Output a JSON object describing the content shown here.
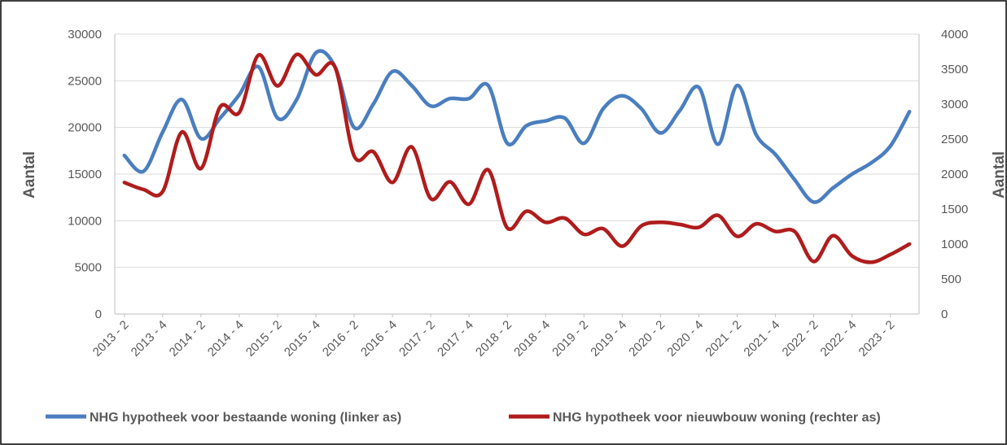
{
  "chart_data": {
    "type": "line",
    "y_left_label": "Aantal",
    "y_right_label": "Aantal",
    "y_left_range": [
      0,
      30000
    ],
    "y_left_ticks": [
      "0",
      "5000",
      "10000",
      "15000",
      "20000",
      "25000",
      "30000"
    ],
    "y_right_range": [
      0,
      4000
    ],
    "y_right_ticks": [
      "0",
      "500",
      "1000",
      "1500",
      "2000",
      "2500",
      "3000",
      "3500",
      "4000"
    ],
    "x_tick_labels": [
      "2013 - 2",
      "2013 - 4",
      "2014 - 2",
      "2014 - 4",
      "2015 - 2",
      "2015 - 4",
      "2016 - 2",
      "2016 - 4",
      "2017 - 2",
      "2017 - 4",
      "2018 - 2",
      "2018 - 4",
      "2019 - 2",
      "2019 - 4",
      "2020 - 2",
      "2020 - 4",
      "2021 - 2",
      "2021 - 4",
      "2022 - 2",
      "2022 - 4",
      "2023 - 2"
    ],
    "grid": "horizontal",
    "legend_position": "bottom",
    "series": [
      {
        "name": "NHG hypotheek voor bestaande woning (linker as)",
        "axis": "left",
        "color": "#4a7ebf",
        "values": [
          17000,
          15300,
          19500,
          23000,
          18800,
          21000,
          23500,
          26500,
          21000,
          23000,
          28000,
          26500,
          20000,
          22500,
          26000,
          24500,
          22300,
          23100,
          23100,
          24500,
          18300,
          20200,
          20700,
          21000,
          18300,
          22000,
          23400,
          22000,
          19400,
          21800,
          24300,
          18200,
          24500,
          19200,
          17100,
          14400,
          12000,
          13500,
          15000,
          16200,
          18000,
          21700
        ]
      },
      {
        "name": "NHG hypotheek voor nieuwbouw woning (rechter as)",
        "axis": "right",
        "color": "#b01c1c",
        "values": [
          1880,
          1780,
          1750,
          2600,
          2080,
          2960,
          2880,
          3700,
          3260,
          3710,
          3420,
          3530,
          2260,
          2320,
          1880,
          2390,
          1650,
          1890,
          1570,
          2060,
          1230,
          1470,
          1310,
          1370,
          1140,
          1220,
          970,
          1260,
          1310,
          1280,
          1240,
          1410,
          1110,
          1290,
          1180,
          1180,
          750,
          1120,
          830,
          740,
          850,
          1000
        ]
      }
    ]
  }
}
